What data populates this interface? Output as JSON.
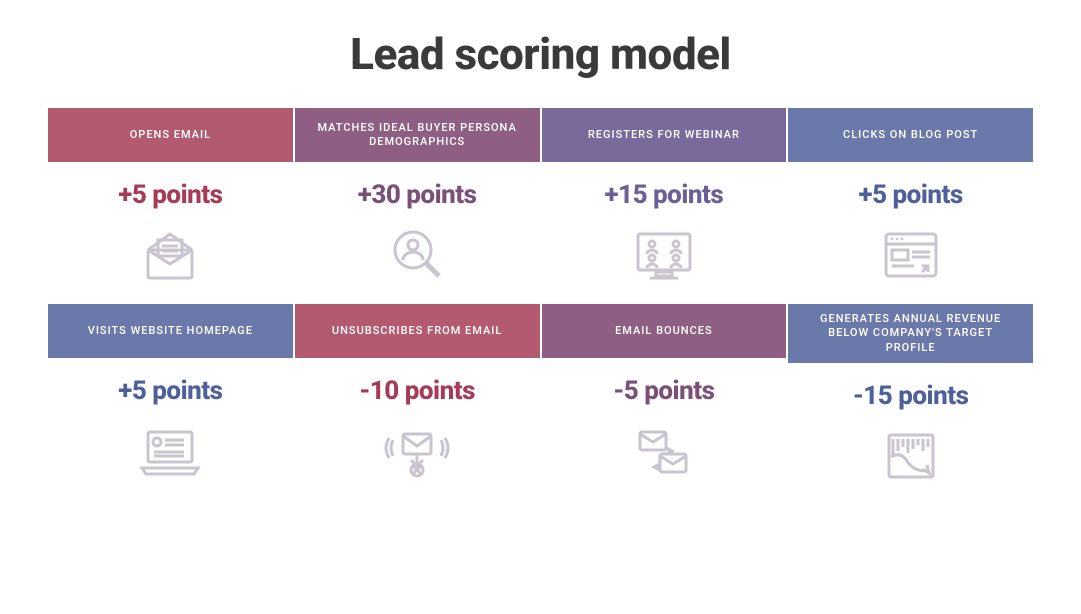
{
  "title": "Lead scoring model",
  "title_fontsize": 44,
  "title_color": "#3a3a3a",
  "points_fontsize": 26,
  "icon_color": "#c9c4cf",
  "grid": {
    "cols": 4,
    "rows": 2,
    "col_gap": 2,
    "row_gap": 18
  },
  "cards": [
    {
      "label": "OPENS EMAIL",
      "header_bg": "#b35a70",
      "points": "+5 points",
      "points_color": "#a53b57",
      "icon": "envelope-open"
    },
    {
      "label": "MATCHES IDEAL BUYER PERSONA DEMOGRAPHICS",
      "header_bg": "#8e5f82",
      "points": "+30 points",
      "points_color": "#7a4f78",
      "icon": "magnify-person"
    },
    {
      "label": "REGISTERS FOR WEBINAR",
      "header_bg": "#7a6a9b",
      "points": "+15 points",
      "points_color": "#6b5f95",
      "icon": "webinar-screen"
    },
    {
      "label": "CLICKS ON BLOG POST",
      "header_bg": "#6a78aa",
      "points": "+5 points",
      "points_color": "#4e6099",
      "icon": "browser-page"
    },
    {
      "label": "VISITS WEBSITE HOMEPAGE",
      "header_bg": "#6a78aa",
      "points": "+5 points",
      "points_color": "#4e6099",
      "icon": "laptop-page"
    },
    {
      "label": "UNSUBSCRIBES FROM EMAIL",
      "header_bg": "#b35a70",
      "points": "-10 points",
      "points_color": "#a53b57",
      "icon": "unsubscribe"
    },
    {
      "label": "EMAIL BOUNCES",
      "header_bg": "#8e5f82",
      "points": "-5 points",
      "points_color": "#7a4f78",
      "icon": "email-bounce"
    },
    {
      "label": "GENERATES ANNUAL REVENUE BELOW COMPANY'S TARGET PROFILE",
      "header_bg": "#6a78aa",
      "points": "-15 points",
      "points_color": "#4e6099",
      "icon": "chart-down"
    }
  ]
}
